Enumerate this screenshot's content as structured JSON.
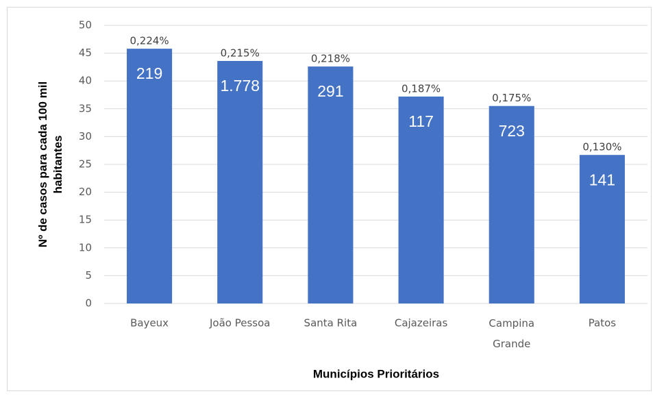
{
  "chart_data": {
    "type": "bar",
    "x_label": "Municípios Prioritários",
    "y_label": "Nº de casos para cada 100 mil habitantes",
    "categories": [
      "Bayeux",
      "João Pessoa",
      "Santa Rita",
      "Cajazeiras",
      "Campina Grande",
      "Patos"
    ],
    "values": [
      45.8,
      43.6,
      42.6,
      37.2,
      35.5,
      26.7
    ],
    "annotations": {
      "percent": [
        "0,224%",
        "0,215%",
        "0,218%",
        "0,187%",
        "0,175%",
        "0,130%"
      ],
      "cases": [
        "219",
        "1.778",
        "291",
        "117",
        "723",
        "141"
      ]
    },
    "color": "#4472c4",
    "ylim": [
      0,
      50
    ],
    "yticks": [
      0,
      5,
      10,
      15,
      20,
      25,
      30,
      35,
      40,
      45,
      50
    ],
    "grid": true
  }
}
